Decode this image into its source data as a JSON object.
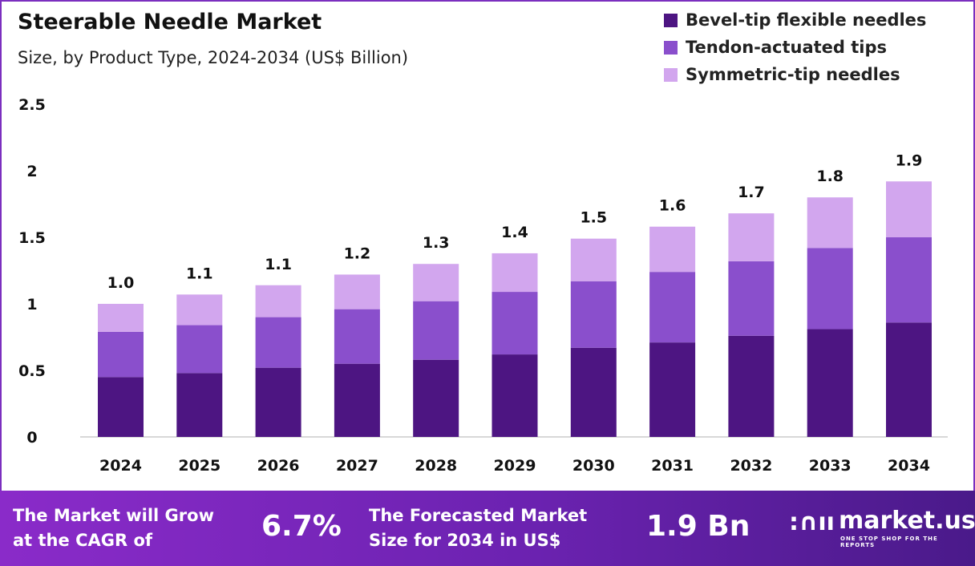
{
  "colors": {
    "bevel": "#4d1582",
    "tendon": "#8a4fcc",
    "symmetric": "#d2a6ee",
    "accent": "#7b2fbf"
  },
  "chart_data": {
    "type": "bar",
    "stacked": true,
    "title": "Steerable Needle Market",
    "subtitle": "Size, by Product Type, 2024-2034 (US$ Billion)",
    "categories": [
      "2024",
      "2025",
      "2026",
      "2027",
      "2028",
      "2029",
      "2030",
      "2031",
      "2032",
      "2033",
      "2034"
    ],
    "series": [
      {
        "name": "Bevel-tip flexible needles",
        "values": [
          0.45,
          0.48,
          0.52,
          0.55,
          0.58,
          0.62,
          0.67,
          0.71,
          0.76,
          0.81,
          0.86
        ]
      },
      {
        "name": "Tendon-actuated tips",
        "values": [
          0.34,
          0.36,
          0.38,
          0.41,
          0.44,
          0.47,
          0.5,
          0.53,
          0.56,
          0.61,
          0.64
        ]
      },
      {
        "name": "Symmetric-tip needles",
        "values": [
          0.21,
          0.23,
          0.24,
          0.26,
          0.28,
          0.29,
          0.32,
          0.34,
          0.36,
          0.38,
          0.42
        ]
      }
    ],
    "totals": [
      "1.0",
      "1.1",
      "1.1",
      "1.2",
      "1.3",
      "1.4",
      "1.5",
      "1.6",
      "1.7",
      "1.8",
      "1.9"
    ],
    "yticks": [
      "0",
      "0.5",
      "1",
      "1.5",
      "2",
      "2.5"
    ],
    "ylim": [
      0,
      2.5
    ],
    "grid": false,
    "legend": "top-right"
  },
  "banner": {
    "cagr_text_1": "The Market will Grow",
    "cagr_text_2": "at the CAGR of",
    "cagr": "6.7%",
    "forecast_text_1": "The Forecasted Market",
    "forecast_text_2": "Size for 2034 in US$",
    "forecast": "1.9 Bn",
    "logo": "market.us",
    "tagline": "ONE STOP SHOP FOR THE REPORTS"
  }
}
